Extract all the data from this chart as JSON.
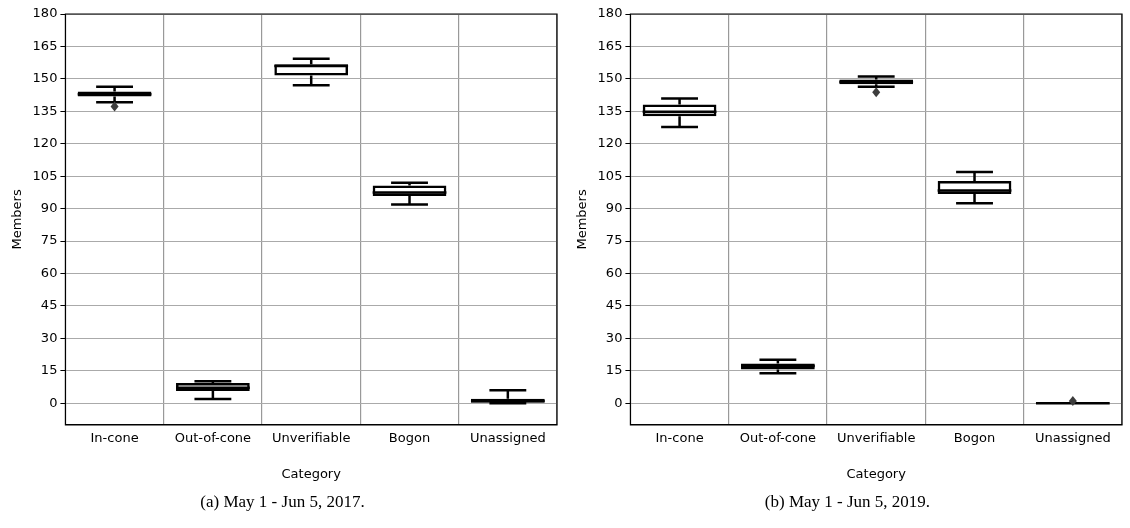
{
  "chart_data": [
    {
      "type": "box",
      "xlabel": "Category",
      "ylabel": "Members",
      "categories": [
        "In-cone",
        "Out-of-cone",
        "Unverifiable",
        "Bogon",
        "Unassigned"
      ],
      "boxes": [
        {
          "low": 139.2,
          "q1": 141.8,
          "median": 142.9,
          "q3": 144.1,
          "high": 146.3,
          "outliers": [
            137.2
          ]
        },
        {
          "low": 1.9,
          "q1": 5.6,
          "median": 7.1,
          "q3": 9.3,
          "high": 10.1
        },
        {
          "low": 147.1,
          "q1": 151.5,
          "median": 156,
          "q3": 156.8,
          "high": 159.3
        },
        {
          "low": 91.9,
          "q1": 95.8,
          "median": 97.4,
          "q3": 100.7,
          "high": 101.9
        },
        {
          "low": 0,
          "q1": 0,
          "median": 1,
          "q3": 2,
          "high": 6
        }
      ],
      "ylim": [
        -10,
        180
      ],
      "yticks": [
        0,
        15,
        30,
        45,
        60,
        75,
        90,
        105,
        120,
        135,
        150,
        165,
        180
      ],
      "grid": true,
      "annotations": [
        "(a)  May 1 - Jun 5, 2017."
      ]
    },
    {
      "type": "box",
      "xlabel": "Category",
      "ylabel": "Members",
      "categories": [
        "In-cone",
        "Out-of-cone",
        "Unverifiable",
        "Bogon",
        "Unassigned"
      ],
      "boxes": [
        {
          "low": 127.7,
          "q1": 132.7,
          "median": 134.8,
          "q3": 138.1,
          "high": 140.9
        },
        {
          "low": 13.8,
          "q1": 15.6,
          "median": 17.2,
          "q3": 18.4,
          "high": 20.1
        },
        {
          "low": 146.3,
          "q1": 147.5,
          "median": 148.6,
          "q3": 149.7,
          "high": 151.1,
          "outliers": [
            143.8
          ]
        },
        {
          "low": 92.5,
          "q1": 96.8,
          "median": 98.4,
          "q3": 102.8,
          "high": 106.9
        },
        {
          "low": 0,
          "q1": 0,
          "median": 0,
          "q3": 0,
          "high": 0,
          "outliers": [
            1
          ]
        }
      ],
      "ylim": [
        -10,
        180
      ],
      "yticks": [
        0,
        15,
        30,
        45,
        60,
        75,
        90,
        105,
        120,
        135,
        150,
        165,
        180
      ],
      "grid": true,
      "annotations": [
        "(b)  May 1 - Jun 5, 2019."
      ]
    }
  ]
}
